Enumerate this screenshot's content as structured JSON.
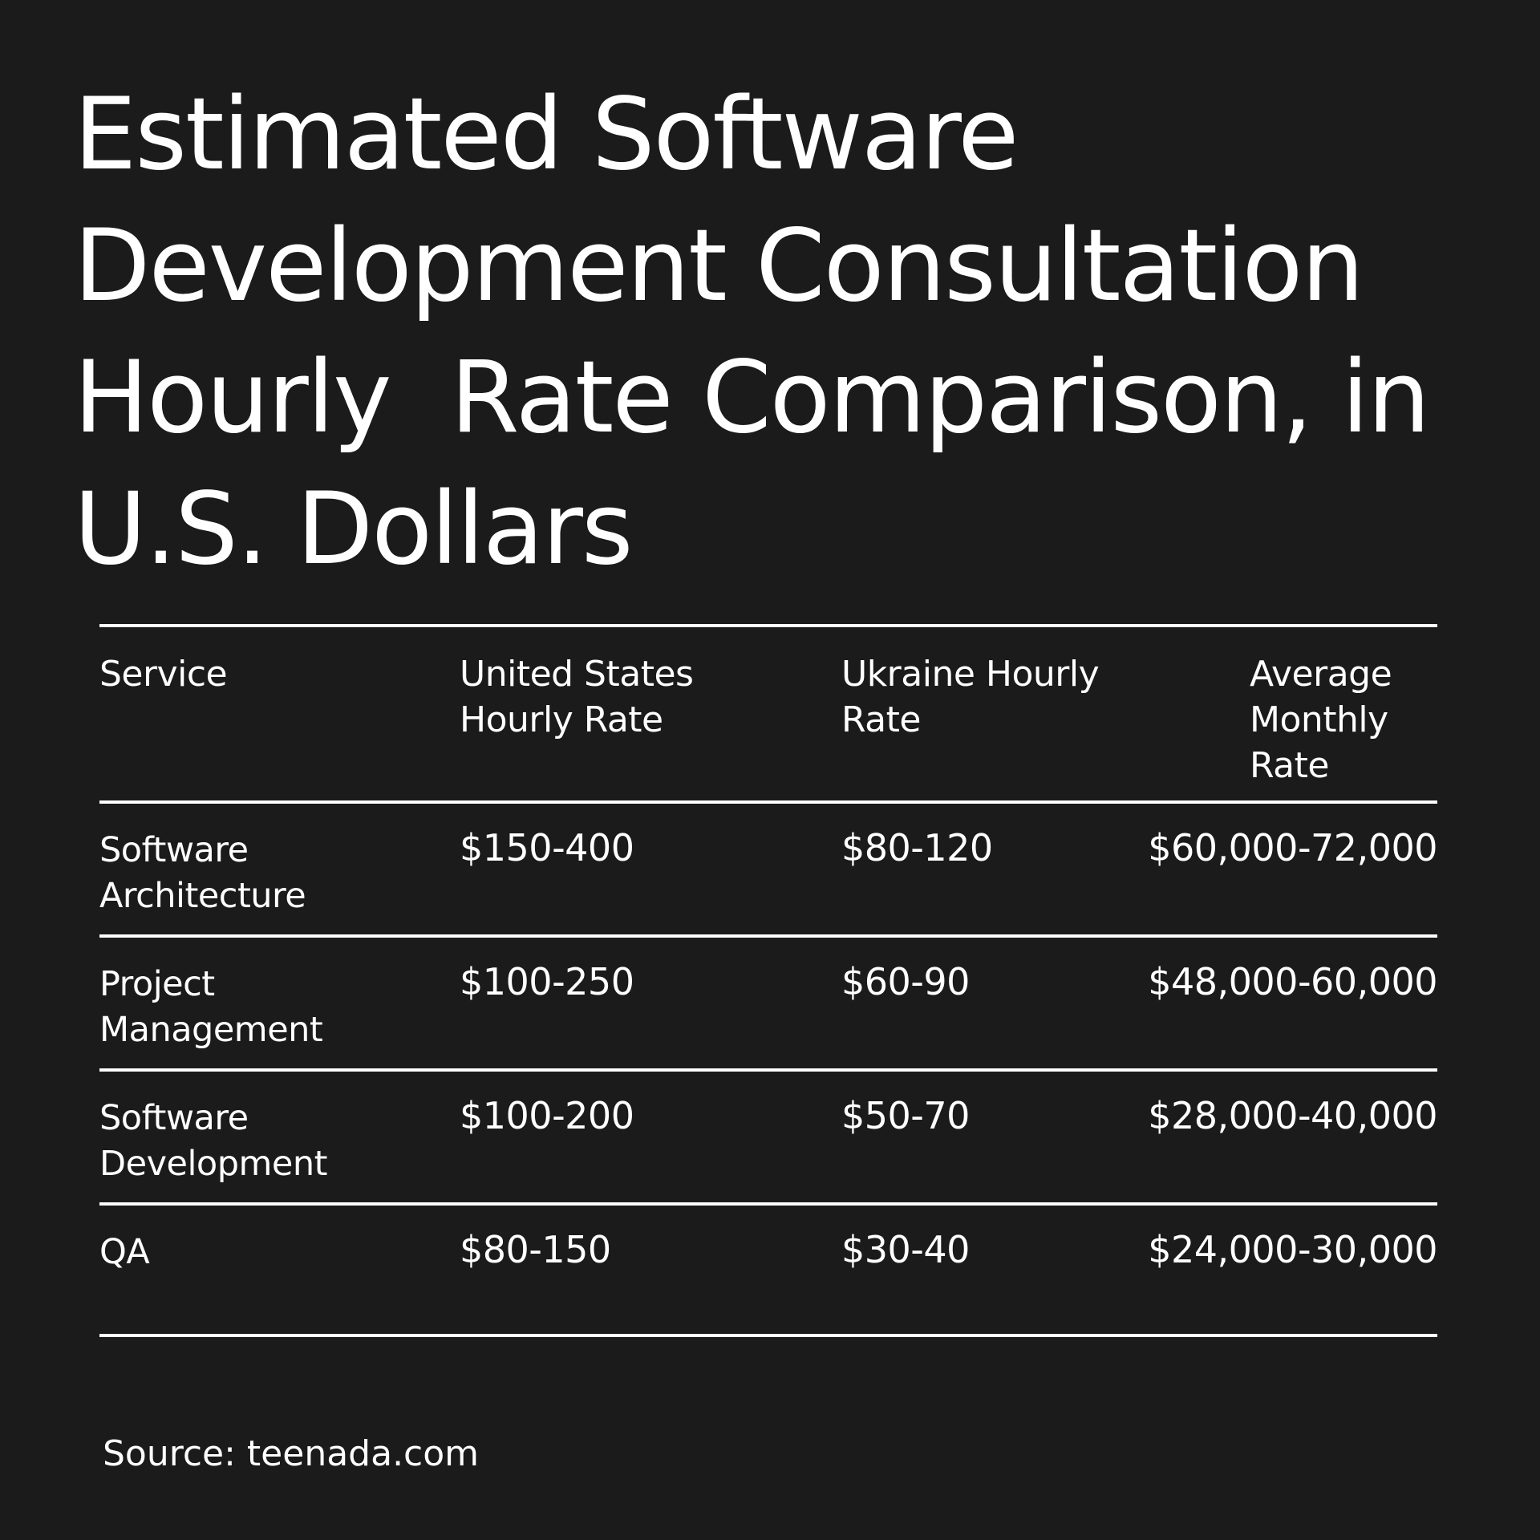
{
  "title_lines": [
    "Estimated Software",
    "Development Consultation",
    "Hourly  Rate Comparison, in",
    "U.S. Dollars"
  ],
  "chart_data": {
    "type": "table",
    "title": "Estimated Software Development Consultation Hourly  Rate Comparison, in U.S. Dollars",
    "columns": [
      "Service",
      "United States\nHourly Rate",
      "Ukraine Hourly\nRate",
      "Average\nMonthly\nRate"
    ],
    "rows": [
      [
        "Software\nArchitecture",
        "$150-400",
        "$80-120",
        "$60,000-72,000"
      ],
      [
        "Project\nManagement",
        "$100-250",
        "$60-90",
        "$48,000-60,000"
      ],
      [
        "Software\nDevelopment",
        "$100-200",
        "$50-70",
        "$28,000-40,000"
      ],
      [
        "QA",
        "$80-150",
        "$30-40",
        "$24,000-30,000"
      ]
    ],
    "source": "Source: teenada.com"
  },
  "colors": {
    "background": "#1b1b1b",
    "text": "#ffffff",
    "rules": "#ffffff"
  }
}
